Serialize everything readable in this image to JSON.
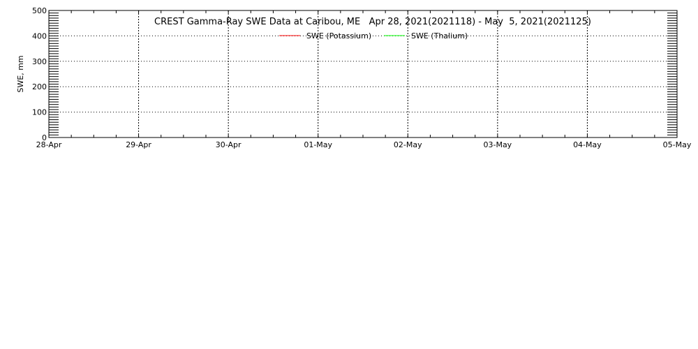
{
  "chart_data": {
    "type": "line",
    "title": "CREST Gamma-Ray SWE Data at Caribou, ME   Apr 28, 2021(2021118) - May  5, 2021(2021125)",
    "xlabel": "",
    "ylabel": "SWE, mm",
    "ylim": [
      0,
      500
    ],
    "yticks": [
      "0",
      "100",
      "200",
      "300",
      "400",
      "500"
    ],
    "xticks": [
      "28-Apr",
      "29-Apr",
      "30-Apr",
      "01-May",
      "02-May",
      "03-May",
      "04-May",
      "05-May"
    ],
    "xlim": [
      "2021-04-28",
      "2021-05-05"
    ],
    "grid": true,
    "legend_placement": "top-center",
    "series": [
      {
        "name": "SWE (Potassium)",
        "color": "#ff0000",
        "x": [],
        "y": []
      },
      {
        "name": "SWE (Thalium)",
        "color": "#00ff00",
        "x": [],
        "y": []
      }
    ]
  }
}
